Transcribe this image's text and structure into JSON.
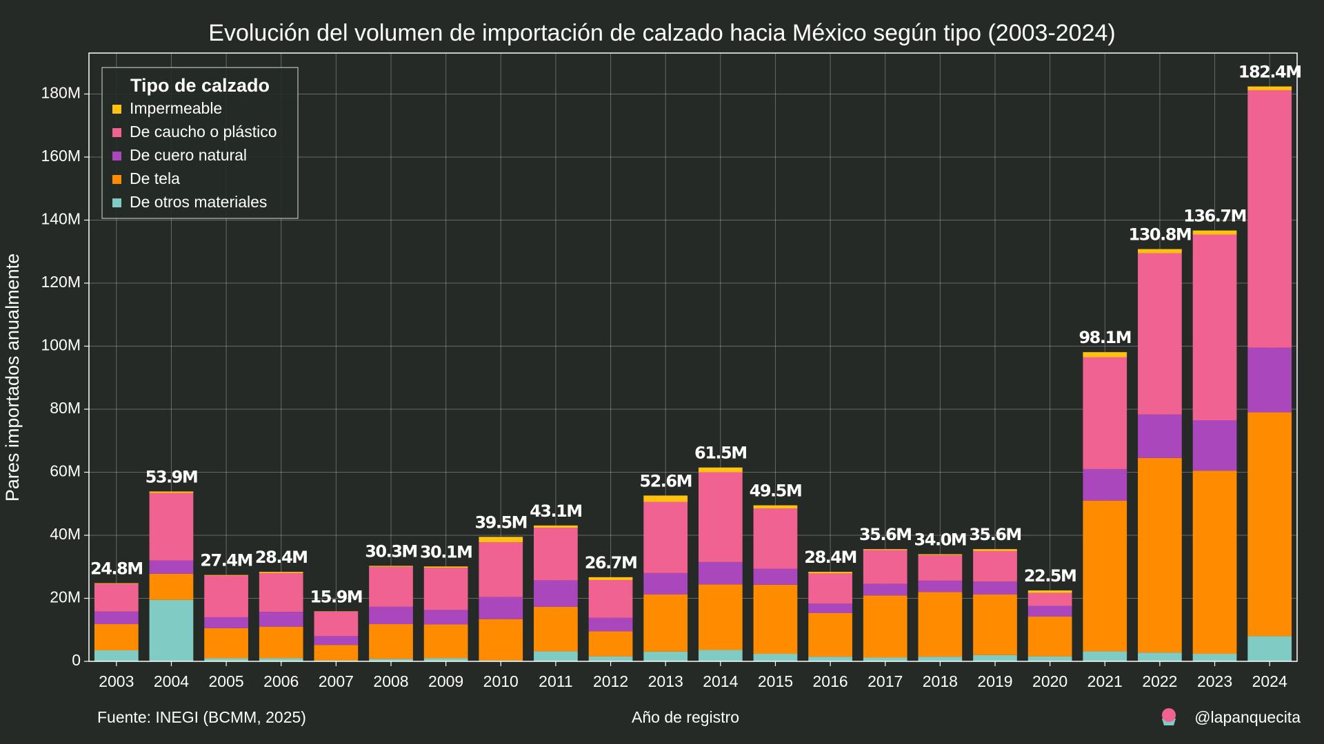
{
  "chart_data": {
    "type": "stacked_bar",
    "title": "Evolución del volumen de importación de calzado hacia México según tipo (2003-2024)",
    "x_label": "Año de registro",
    "y_label": "Pares importados anualmente",
    "source": "Fuente: INEGI (BCMM, 2025)",
    "credit": "@lapanquecita",
    "legend_title": "Tipo de calzado",
    "legend": "upper left",
    "grid": true,
    "categories": [
      "2003",
      "2004",
      "2005",
      "2006",
      "2007",
      "2008",
      "2009",
      "2010",
      "2011",
      "2012",
      "2013",
      "2014",
      "2015",
      "2016",
      "2017",
      "2018",
      "2019",
      "2020",
      "2021",
      "2022",
      "2023",
      "2024"
    ],
    "series": [
      {
        "name": "De otros materiales",
        "color": "#80cbc4",
        "values": [
          3500000,
          19500000,
          1000000,
          1000000,
          300000,
          800000,
          1000000,
          300000,
          3200000,
          1600000,
          3100000,
          3600000,
          2400000,
          1500000,
          1200000,
          1500000,
          2000000,
          1600000,
          3200000,
          2800000,
          2400000,
          8000000
        ]
      },
      {
        "name": "De tela",
        "color": "#ff8c00",
        "values": [
          8300000,
          8300000,
          9500000,
          10000000,
          4900000,
          11000000,
          10700000,
          13100000,
          14100000,
          7900000,
          18100000,
          20800000,
          21900000,
          13800000,
          19700000,
          20500000,
          19200000,
          12600000,
          47800000,
          61700000,
          58100000,
          71000000
        ]
      },
      {
        "name": "De cuero natural",
        "color": "#ab47bc",
        "values": [
          4000000,
          4200000,
          3500000,
          4700000,
          2800000,
          5500000,
          4600000,
          7000000,
          8400000,
          4300000,
          6800000,
          7100000,
          5100000,
          3000000,
          3700000,
          3600000,
          4100000,
          3400000,
          10000000,
          13800000,
          16000000,
          20500000
        ]
      },
      {
        "name": "De caucho o plástico",
        "color": "#f06292",
        "values": [
          8800000,
          21400000,
          13200000,
          12300000,
          7800000,
          12700000,
          13400000,
          17400000,
          16700000,
          12000000,
          22600000,
          28500000,
          19100000,
          9600000,
          10700000,
          8100000,
          9700000,
          4100000,
          35500000,
          51200000,
          58900000,
          81700000
        ]
      },
      {
        "name": "Impermeable",
        "color": "#ffc20e",
        "values": [
          200000,
          500000,
          200000,
          400000,
          100000,
          300000,
          400000,
          1700000,
          700000,
          900000,
          2000000,
          1500000,
          1000000,
          500000,
          300000,
          300000,
          600000,
          800000,
          1600000,
          1300000,
          1300000,
          1200000
        ]
      }
    ],
    "total_labels": [
      "24.8M",
      "53.9M",
      "27.4M",
      "28.4M",
      "15.9M",
      "30.3M",
      "30.1M",
      "39.5M",
      "43.1M",
      "26.7M",
      "52.6M",
      "61.5M",
      "49.5M",
      "28.4M",
      "35.6M",
      "34.0M",
      "35.6M",
      "22.5M",
      "98.1M",
      "130.8M",
      "136.7M",
      "182.4M"
    ],
    "ylim": [
      0,
      193000000
    ],
    "yticks": [
      0,
      {
        "value": 20000000,
        "label": "20M"
      },
      {
        "value": 40000000,
        "label": "40M"
      },
      {
        "value": 60000000,
        "label": "60M"
      },
      {
        "value": 80000000,
        "label": "80M"
      },
      {
        "value": 100000000,
        "label": "100M"
      },
      {
        "value": 120000000,
        "label": "120M"
      },
      {
        "value": 140000000,
        "label": "140M"
      },
      {
        "value": 160000000,
        "label": "160M"
      },
      {
        "value": 180000000,
        "label": "180M"
      }
    ]
  }
}
